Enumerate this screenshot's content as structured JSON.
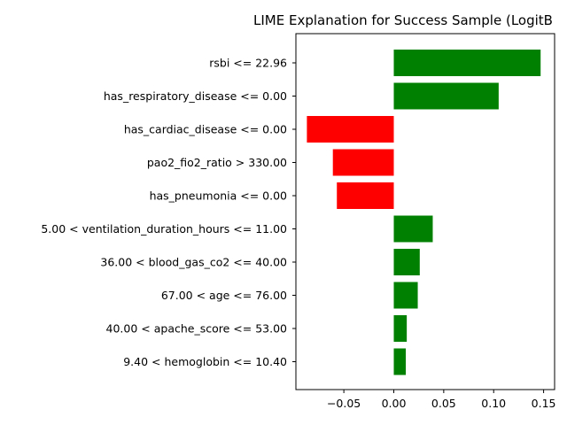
{
  "chart_data": {
    "type": "bar",
    "orientation": "horizontal",
    "title": "LIME Explanation for Success Sample (LogitB",
    "xlabel": "",
    "ylabel": "",
    "categories": [
      "rsbi <= 22.96",
      "has_respiratory_disease <= 0.00",
      "has_cardiac_disease <= 0.00",
      "pao2_fio2_ratio > 330.00",
      "has_pneumonia <= 0.00",
      "5.00 < ventilation_duration_hours <= 11.00",
      "36.00 < blood_gas_co2 <= 40.00",
      "67.00 < age <= 76.00",
      "40.00 < apache_score <= 53.00",
      "9.40 < hemoglobin <= 10.40"
    ],
    "values": [
      0.147,
      0.105,
      -0.087,
      -0.061,
      -0.057,
      0.039,
      0.026,
      0.024,
      0.013,
      0.012
    ],
    "xlim": [
      -0.098,
      0.161
    ],
    "xticks": [
      -0.05,
      0.0,
      0.05,
      0.1,
      0.15
    ],
    "xtick_labels": [
      "−0.05",
      "0.00",
      "0.05",
      "0.10",
      "0.15"
    ],
    "grid": false,
    "legend": "none",
    "colors": {
      "positive": "#008000",
      "negative": "#ff0000"
    }
  }
}
